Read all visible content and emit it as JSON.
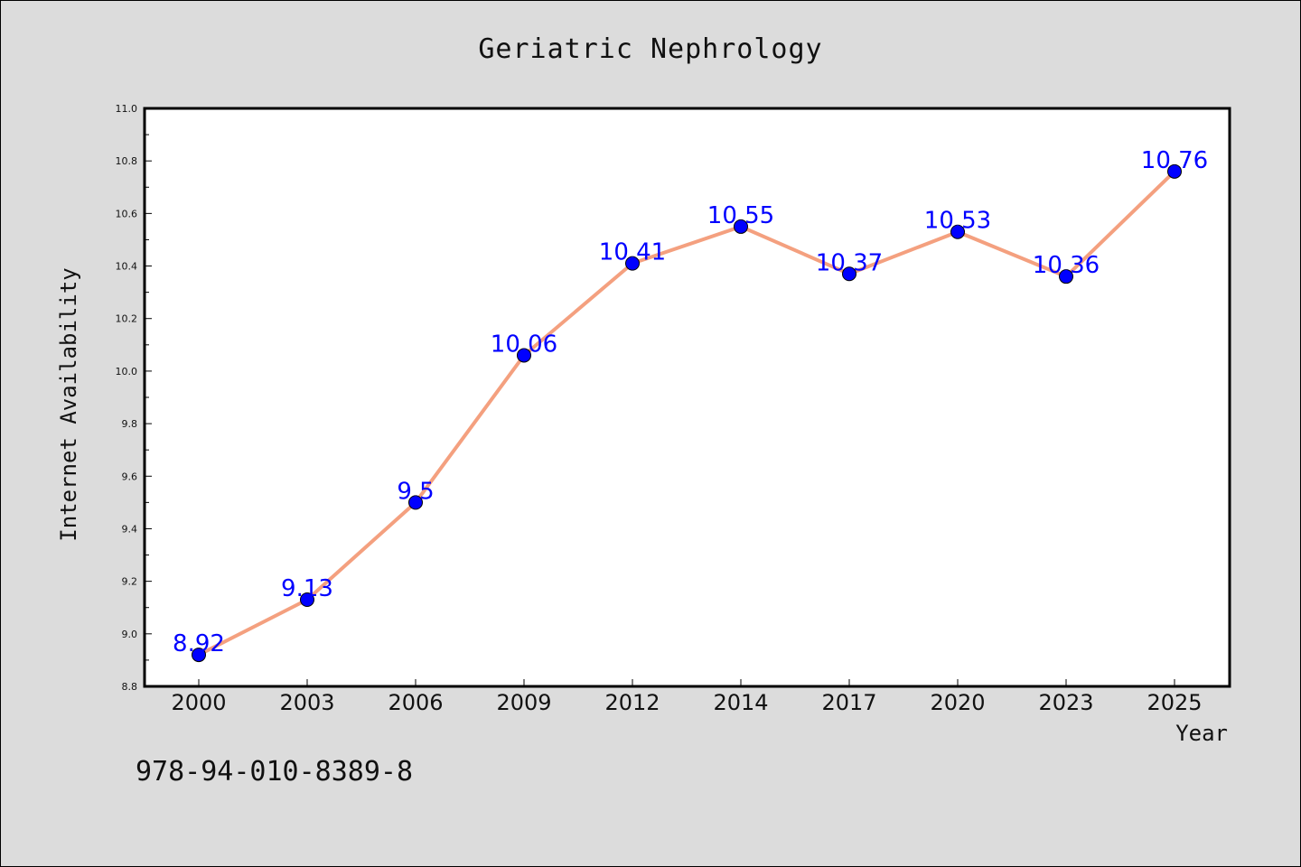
{
  "chart_data": {
    "type": "line",
    "title": "Geriatric Nephrology",
    "xlabel": "Year",
    "ylabel": "Internet Availability",
    "categories": [
      "2000",
      "2003",
      "2006",
      "2009",
      "2012",
      "2014",
      "2017",
      "2020",
      "2023",
      "2025"
    ],
    "series": [
      {
        "values": [
          8.92,
          9.13,
          9.5,
          10.06,
          10.41,
          10.55,
          10.37,
          10.53,
          10.36,
          10.76
        ],
        "labels": [
          "8.92",
          "9.13",
          "9.5",
          "10.06",
          "10.41",
          "10.55",
          "10.37",
          "10.53",
          "10.36",
          "10.76"
        ],
        "line_color": "#f4a07f",
        "marker_color": "#0000ff"
      }
    ],
    "ylim": [
      8.8,
      11.0
    ],
    "yticks": [
      "8.8",
      "9.0",
      "9.2",
      "9.4",
      "9.6",
      "9.8",
      "10.0",
      "10.2",
      "10.4",
      "10.6",
      "10.8",
      "11.0"
    ],
    "grid": false,
    "legend": "none"
  },
  "footer_text": "978-94-010-8389-8",
  "colors": {
    "background": "#dcdcdc",
    "plot_background": "#ffffff",
    "data_label": "#0000ff"
  }
}
